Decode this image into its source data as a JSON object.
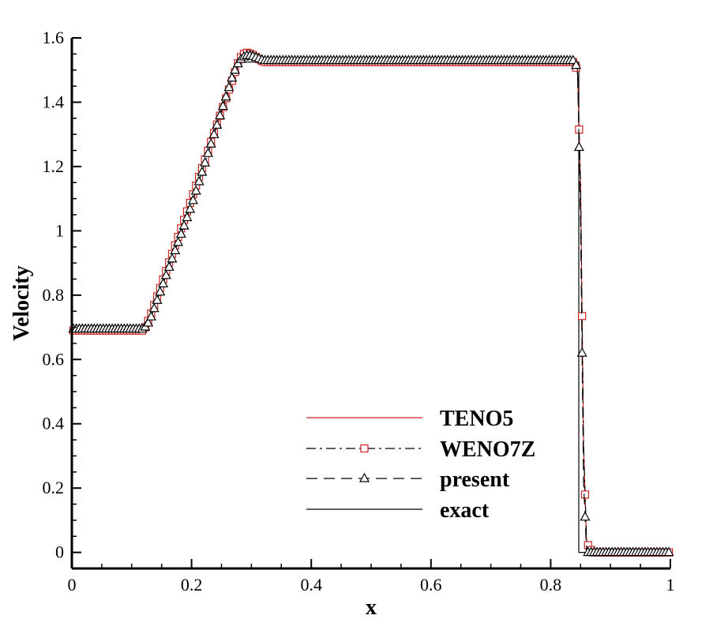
{
  "chart_data": {
    "type": "line",
    "title": "",
    "xlabel": "x",
    "ylabel": "Velocity",
    "xlim": [
      0,
      1
    ],
    "ylim": [
      -0.05,
      1.6
    ],
    "x_ticks": [
      0,
      0.2,
      0.4,
      0.6,
      0.8,
      1
    ],
    "x_tick_labels": [
      "0",
      "0.2",
      "0.4",
      "0.6",
      "0.8",
      "1"
    ],
    "y_ticks": [
      0,
      0.2,
      0.4,
      0.6,
      0.8,
      1,
      1.2,
      1.4,
      1.6
    ],
    "y_tick_labels": [
      "0",
      "0.2",
      "0.4",
      "0.6",
      "0.8",
      "1",
      "1.2",
      "1.4",
      "1.6"
    ],
    "grid": false,
    "legend_position": "lower-right",
    "series": [
      {
        "name": "TENO5",
        "color": "#cc2222",
        "line_style": "solid",
        "marker": "none",
        "x": [
          0,
          0.11,
          0.12,
          0.13,
          0.2,
          0.27,
          0.28,
          0.29,
          0.3,
          0.32,
          0.4,
          0.6,
          0.8,
          0.84,
          0.845,
          0.85,
          0.855,
          0.86,
          0.87,
          1.0
        ],
        "y": [
          0.69,
          0.69,
          0.69,
          0.72,
          1.1,
          1.48,
          1.53,
          1.545,
          1.535,
          1.52,
          1.52,
          1.52,
          1.52,
          1.52,
          1.49,
          1.14,
          0.33,
          0.03,
          0.0,
          0.0
        ]
      },
      {
        "name": "WENO7Z",
        "color": "#000000",
        "line_style": "dashdot",
        "marker": "square",
        "marker_color": "#cc2222",
        "x": [
          0,
          0.11,
          0.12,
          0.13,
          0.2,
          0.27,
          0.28,
          0.29,
          0.3,
          0.32,
          0.4,
          0.6,
          0.8,
          0.84,
          0.845,
          0.85,
          0.855,
          0.86,
          0.87,
          1.0
        ],
        "y": [
          0.69,
          0.69,
          0.69,
          0.73,
          1.1,
          1.48,
          1.535,
          1.555,
          1.55,
          1.525,
          1.525,
          1.525,
          1.525,
          1.525,
          1.49,
          1.14,
          0.33,
          0.03,
          0.0,
          0.0
        ]
      },
      {
        "name": "present",
        "color": "#000000",
        "line_style": "dashed",
        "marker": "triangle",
        "marker_color": "#000000",
        "x": [
          0,
          0.11,
          0.12,
          0.13,
          0.2,
          0.27,
          0.28,
          0.29,
          0.3,
          0.32,
          0.4,
          0.6,
          0.8,
          0.84,
          0.845,
          0.85,
          0.855,
          0.86,
          0.87,
          1.0
        ],
        "y": [
          0.695,
          0.695,
          0.695,
          0.72,
          1.08,
          1.49,
          1.53,
          1.545,
          1.545,
          1.53,
          1.53,
          1.53,
          1.53,
          1.53,
          1.5,
          1.02,
          0.22,
          0.0,
          0.0,
          0.0
        ]
      },
      {
        "name": "exact",
        "color": "#000000",
        "line_style": "solid",
        "marker": "none",
        "x": [
          0,
          0.12,
          0.28,
          0.847,
          0.847,
          1.0
        ],
        "y": [
          0.69,
          0.69,
          1.525,
          1.525,
          0.0,
          0.0
        ]
      }
    ]
  }
}
